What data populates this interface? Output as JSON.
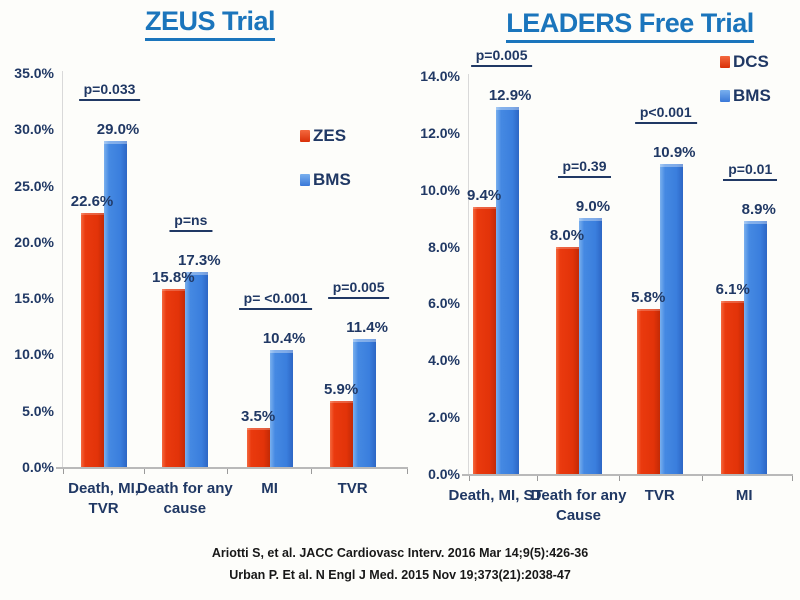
{
  "slide": {
    "background_color": "#fdfdfa",
    "citations": [
      "Ariotti S, et al. JACC Cardiovasc Interv. 2016 Mar 14;9(5):426-36",
      "Urban P. Et al. N Engl J Med. 2015 Nov 19;373(21):2038-47"
    ]
  },
  "colors": {
    "title_blue": "#1b75bc",
    "label_navy": "#203864",
    "bar_red": "#e8380d",
    "bar_blue": "#4189e2"
  },
  "chart_data": [
    {
      "type": "bar",
      "title": "ZEUS Trial",
      "categories": [
        "Death, MI,\nTVR",
        "Death for any\ncause",
        "MI",
        "TVR"
      ],
      "series": [
        {
          "name": "ZES",
          "color": "#e8380d",
          "values": [
            22.6,
            15.8,
            3.5,
            5.9
          ]
        },
        {
          "name": "BMS",
          "color": "#4189e2",
          "values": [
            29.0,
            17.3,
            10.4,
            11.4
          ]
        }
      ],
      "p_values": [
        "p=0.033",
        "p=ns",
        "p= <0.001",
        "p=0.005"
      ],
      "ylim": [
        0,
        35
      ],
      "ytick_step": 5,
      "ytick_format": "percent_1dp",
      "grid": false,
      "legend_position": "inside-top-right"
    },
    {
      "type": "bar",
      "title": "LEADERS Free Trial",
      "categories": [
        "Death, MI, ST",
        "Death for any\nCause",
        "TVR",
        "MI"
      ],
      "series": [
        {
          "name": "DCS",
          "color": "#e8380d",
          "values": [
            9.4,
            8.0,
            5.8,
            6.1
          ]
        },
        {
          "name": "BMS",
          "color": "#4189e2",
          "values": [
            12.9,
            9.0,
            10.9,
            8.9
          ]
        }
      ],
      "p_values": [
        "p=0.005",
        "p=0.39",
        "p<0.001",
        "p=0.01"
      ],
      "ylim": [
        0,
        14
      ],
      "ytick_step": 2,
      "ytick_format": "percent_1dp",
      "grid": false,
      "legend_position": "inside-top-right"
    }
  ]
}
